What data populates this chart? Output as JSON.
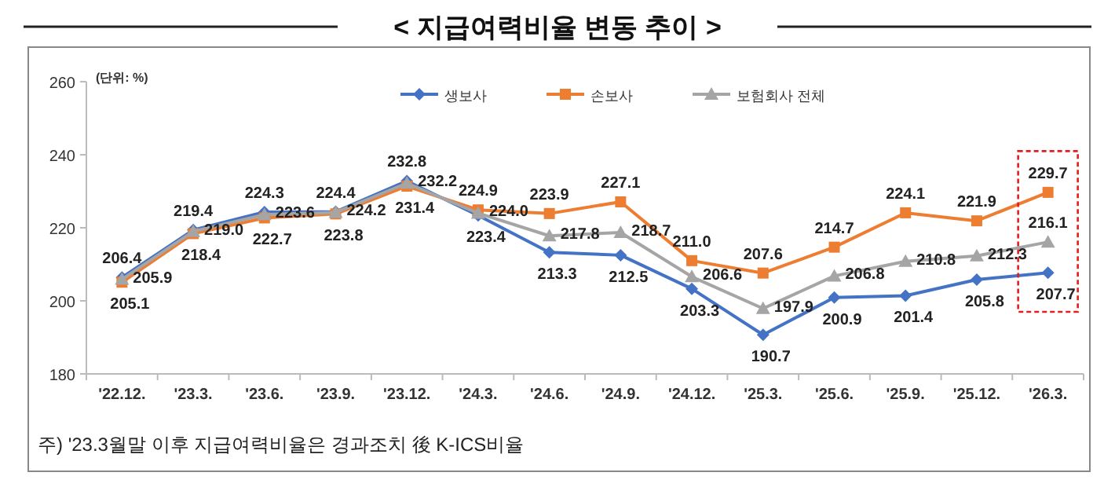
{
  "chart_data": {
    "type": "line",
    "title": "< 지급여력비율 변동 추이 >",
    "categories": [
      "'22.12.",
      "'23.3.",
      "'23.6.",
      "'23.9.",
      "'23.12.",
      "'24.3.",
      "'24.6.",
      "'24.9.",
      "'24.12.",
      "'25.3.",
      "'25.6.",
      "'25.9.",
      "'25.12.",
      "'26.3."
    ],
    "series": [
      {
        "name": "생보사",
        "color": "#4472c4",
        "marker": "diamond",
        "values": [
          206.4,
          219.4,
          224.3,
          224.4,
          232.8,
          223.4,
          213.3,
          212.5,
          203.3,
          190.7,
          200.9,
          201.4,
          205.8,
          207.7
        ],
        "value_labels": [
          "206.4",
          "219.4",
          "224.3",
          "224.4",
          "232.8",
          "223.4",
          "213.3",
          "212.5",
          "203.3",
          "190.7",
          "200.9",
          "201.4",
          "205.8",
          "207.7"
        ]
      },
      {
        "name": "손보사",
        "color": "#ed7d31",
        "marker": "square",
        "values": [
          205.1,
          218.4,
          222.7,
          223.8,
          231.4,
          224.9,
          223.9,
          227.1,
          211.0,
          207.6,
          214.7,
          224.1,
          221.9,
          229.7
        ],
        "value_labels": [
          "205.1",
          "218.4",
          "222.7",
          "223.8",
          "231.4",
          "224.9",
          "223.9",
          "227.1",
          "211.0",
          "207.6",
          "214.7",
          "224.1",
          "221.9",
          "229.7"
        ]
      },
      {
        "name": "보험회사 전체",
        "color": "#a5a5a5",
        "marker": "triangle",
        "values": [
          205.9,
          219.0,
          223.6,
          224.2,
          232.2,
          224.0,
          217.8,
          218.7,
          206.6,
          197.9,
          206.8,
          210.8,
          212.3,
          216.1
        ],
        "value_labels": [
          "205.9",
          "219.0",
          "223.6",
          "224.2",
          "232.2",
          "224.0",
          "217.8",
          "218.7",
          "206.6",
          "197.9",
          "206.8",
          "210.8",
          "212.3",
          "216.1"
        ]
      }
    ],
    "ylim": [
      180,
      260
    ],
    "yticks": [
      180,
      200,
      220,
      240,
      260
    ],
    "legend": "top right",
    "grid": false,
    "annotations": [
      "(단위: %)",
      "주) '23.3월말 이후 지급여력비율은 경과조치 後 K-ICS비율"
    ]
  }
}
